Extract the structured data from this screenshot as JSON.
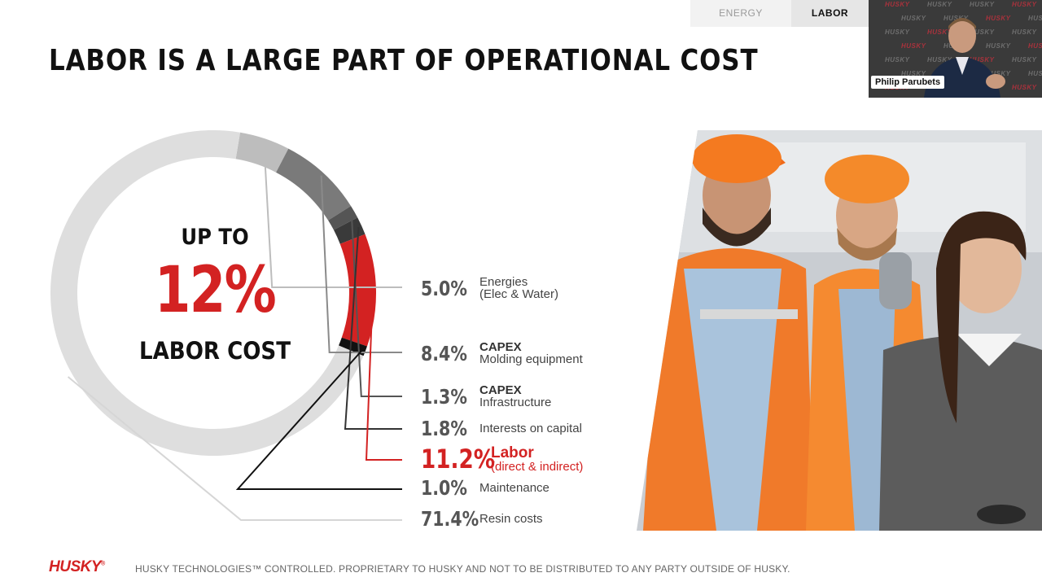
{
  "tabs": [
    {
      "label": "ENERGY",
      "active": false
    },
    {
      "label": "LABOR",
      "active": true
    }
  ],
  "slide": {
    "title": "LABOR IS A LARGE PART OF OPERATIONAL COST",
    "ring": {
      "line1": "UP TO",
      "big": "12%",
      "line3": "LABOR COST"
    },
    "legend": [
      {
        "pct": "5.0%",
        "line1": "Energies",
        "line2": "(Elec & Water)",
        "bold1": false
      },
      {
        "pct": "8.4%",
        "line1": "CAPEX",
        "line2": "Molding equipment",
        "bold1": true
      },
      {
        "pct": "1.3%",
        "line1": "CAPEX",
        "line2": "Infrastructure",
        "bold1": true
      },
      {
        "pct": "1.8%",
        "line1": "Interests on capital",
        "line2": "",
        "bold1": false
      },
      {
        "pct": "11.2%",
        "line1": "Labor",
        "line2": "(direct & indirect)",
        "bold1": true
      },
      {
        "pct": "1.0%",
        "line1": "Maintenance",
        "line2": "",
        "bold1": false
      },
      {
        "pct": "71.4%",
        "line1": "Resin costs",
        "line2": "",
        "bold1": false
      }
    ]
  },
  "chart_data": {
    "type": "pie",
    "categories": [
      "Energies (Elec & Water)",
      "CAPEX Molding equipment",
      "CAPEX Infrastructure",
      "Interests on capital",
      "Labor (direct & indirect)",
      "Maintenance",
      "Resin costs"
    ],
    "values": [
      5.0,
      8.4,
      1.3,
      1.8,
      11.2,
      1.0,
      71.4
    ],
    "colors": [
      "#bdbdbd",
      "#7a7a7a",
      "#555555",
      "#3a3a3a",
      "#d32222",
      "#111111",
      "#dedede"
    ]
  },
  "video": {
    "participant_name": "Philip Parubets",
    "watermark": "HUSKY"
  },
  "footer": {
    "logo": "HUSKY",
    "logo_mark": "®",
    "disclaimer": "HUSKY TECHNOLOGIES™ CONTROLLED. PROPRIETARY TO HUSKY AND NOT TO BE DISTRIBUTED TO ANY PARTY OUTSIDE OF HUSKY."
  },
  "colors": {
    "accent_red": "#d32222",
    "text_dark": "#111111",
    "text_grey": "#555555"
  },
  "icons": [
    "workers-photo",
    "presenter-video"
  ]
}
